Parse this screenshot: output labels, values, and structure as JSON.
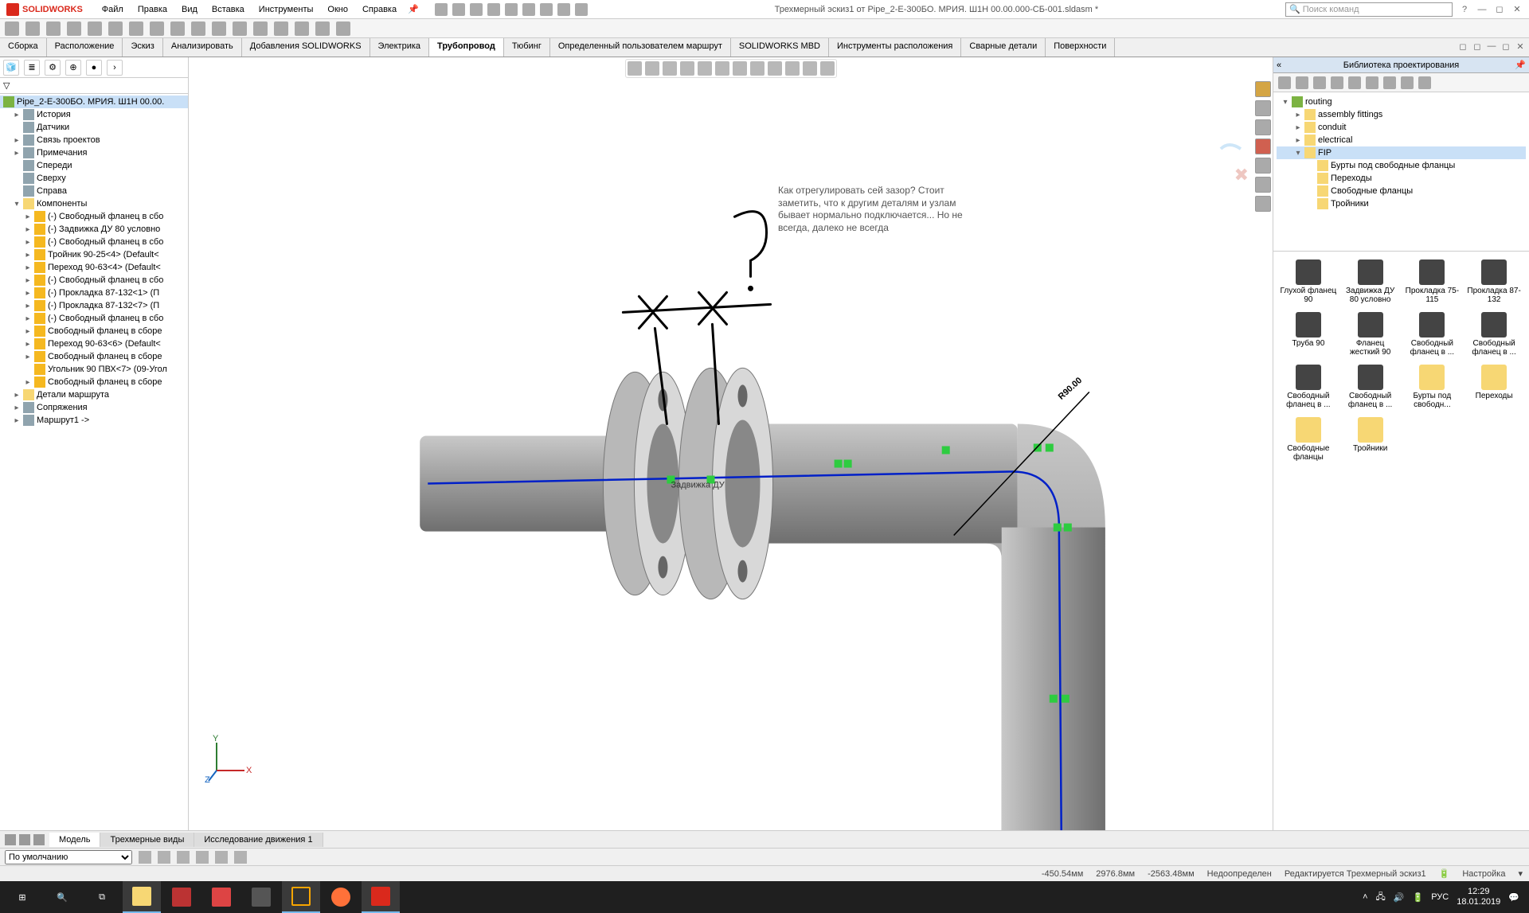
{
  "app": {
    "name": "SOLIDWORKS"
  },
  "menu": [
    "Файл",
    "Правка",
    "Вид",
    "Вставка",
    "Инструменты",
    "Окно",
    "Справка"
  ],
  "doc_title": "Трехмерный эскиз1 от Pipe_2-E-300БО. МРИЯ. Ш1Н 00.00.000-СБ-001.sldasm *",
  "search_placeholder": "Поиск команд",
  "cmd_tabs": [
    "Сборка",
    "Расположение",
    "Эскиз",
    "Анализировать",
    "Добавления SOLIDWORKS",
    "Электрика",
    "Трубопровод",
    "Тюбинг",
    "Определенный пользователем маршрут",
    "SOLIDWORKS MBD",
    "Инструменты расположения",
    "Сварные детали",
    "Поверхности"
  ],
  "cmd_tab_active": 6,
  "tree_root": "Pipe_2-E-300БО. МРИЯ. Ш1Н 00.00.",
  "tree": [
    {
      "label": "История",
      "icon": "feat",
      "indent": 1,
      "expand": "▸"
    },
    {
      "label": "Датчики",
      "icon": "feat",
      "indent": 1,
      "expand": ""
    },
    {
      "label": "Связь проектов",
      "icon": "feat",
      "indent": 1,
      "expand": "▸"
    },
    {
      "label": "Примечания",
      "icon": "feat",
      "indent": 1,
      "expand": "▸"
    },
    {
      "label": "Спереди",
      "icon": "feat",
      "indent": 1,
      "expand": ""
    },
    {
      "label": "Сверху",
      "icon": "feat",
      "indent": 1,
      "expand": ""
    },
    {
      "label": "Справа",
      "icon": "feat",
      "indent": 1,
      "expand": ""
    },
    {
      "label": "Компоненты",
      "icon": "folder",
      "indent": 1,
      "expand": "▾"
    },
    {
      "label": "(-) Свободный фланец в сбо",
      "icon": "part",
      "indent": 2,
      "expand": "▸"
    },
    {
      "label": "(-) Задвижка ДУ 80 условно",
      "icon": "part",
      "indent": 2,
      "expand": "▸"
    },
    {
      "label": "(-) Свободный фланец в сбо",
      "icon": "part",
      "indent": 2,
      "expand": "▸"
    },
    {
      "label": "Тройник 90-25<4> (Default<",
      "icon": "part",
      "indent": 2,
      "expand": "▸"
    },
    {
      "label": "Переход 90-63<4> (Default<",
      "icon": "part",
      "indent": 2,
      "expand": "▸"
    },
    {
      "label": "(-) Свободный фланец в сбо",
      "icon": "part",
      "indent": 2,
      "expand": "▸"
    },
    {
      "label": "(-) Прокладка 87-132<1> (П",
      "icon": "part",
      "indent": 2,
      "expand": "▸"
    },
    {
      "label": "(-) Прокладка 87-132<7> (П",
      "icon": "part",
      "indent": 2,
      "expand": "▸"
    },
    {
      "label": "(-) Свободный фланец в сбо",
      "icon": "part",
      "indent": 2,
      "expand": "▸"
    },
    {
      "label": "Свободный фланец в сборе",
      "icon": "part",
      "indent": 2,
      "expand": "▸"
    },
    {
      "label": "Переход 90-63<6> (Default<",
      "icon": "part",
      "indent": 2,
      "expand": "▸"
    },
    {
      "label": "Свободный фланец в сборе",
      "icon": "part",
      "indent": 2,
      "expand": "▸"
    },
    {
      "label": "Угольник 90 ПВХ<7> (09-Угол",
      "icon": "part",
      "indent": 2,
      "expand": ""
    },
    {
      "label": "Свободный фланец в сборе",
      "icon": "part",
      "indent": 2,
      "expand": "▸"
    },
    {
      "label": "Детали маршрута",
      "icon": "folder",
      "indent": 1,
      "expand": "▸"
    },
    {
      "label": "Сопряжения",
      "icon": "feat",
      "indent": 1,
      "expand": "▸"
    },
    {
      "label": "Маршрут1 ->",
      "icon": "feat",
      "indent": 1,
      "expand": "▸"
    }
  ],
  "annotation_text": "Как отрегулировать сей зазор? Стоит заметить, что к другим деталям и узлам бывает нормально подключается... Но не всегда, далеко не всегда",
  "dim_label": "R90.00",
  "right_panel_title": "Библиотека проектирования",
  "rp_tree": [
    {
      "label": "routing",
      "indent": 0,
      "expand": "▾",
      "icon": "asm"
    },
    {
      "label": "assembly fittings",
      "indent": 1,
      "expand": "▸",
      "icon": "folder"
    },
    {
      "label": "conduit",
      "indent": 1,
      "expand": "▸",
      "icon": "folder"
    },
    {
      "label": "electrical",
      "indent": 1,
      "expand": "▸",
      "icon": "folder"
    },
    {
      "label": "FIP",
      "indent": 1,
      "expand": "▾",
      "icon": "folder",
      "sel": true
    },
    {
      "label": "Бурты под свободные фланцы",
      "indent": 2,
      "expand": "",
      "icon": "folder"
    },
    {
      "label": "Переходы",
      "indent": 2,
      "expand": "",
      "icon": "folder"
    },
    {
      "label": "Свободные фланцы",
      "indent": 2,
      "expand": "",
      "icon": "folder"
    },
    {
      "label": "Тройники",
      "indent": 2,
      "expand": "",
      "icon": "folder"
    }
  ],
  "rp_items": [
    {
      "label": "Глухой фланец 90",
      "thumb": "part"
    },
    {
      "label": "Задвижка ДУ 80 условно",
      "thumb": "part"
    },
    {
      "label": "Прокладка 75-115",
      "thumb": "part"
    },
    {
      "label": "Прокладка 87-132",
      "thumb": "part"
    },
    {
      "label": "Труба 90",
      "thumb": "part"
    },
    {
      "label": "Фланец жесткий 90",
      "thumb": "part"
    },
    {
      "label": "Свободный фланец в ...",
      "thumb": "part"
    },
    {
      "label": "Свободный фланец в ...",
      "thumb": "part"
    },
    {
      "label": "Свободный фланец в ...",
      "thumb": "part"
    },
    {
      "label": "Свободный фланец в ...",
      "thumb": "part"
    },
    {
      "label": "Бурты под свободн...",
      "thumb": "folder"
    },
    {
      "label": "Переходы",
      "thumb": "folder"
    },
    {
      "label": "Свободные фланцы",
      "thumb": "folder"
    },
    {
      "label": "Тройники",
      "thumb": "folder"
    }
  ],
  "bottom_tabs": [
    "Модель",
    "Трехмерные виды",
    "Исследование движения 1"
  ],
  "bottom_tab_active": 0,
  "config_value": "По умолчанию",
  "status": {
    "coord1": "-450.54мм",
    "coord2": "2976.8мм",
    "coord3": "-2563.48мм",
    "state": "Недоопределен",
    "editing": "Редактируется Трехмерный эскиз1",
    "custom": "Настройка"
  },
  "clock": {
    "time": "12:29",
    "date": "18.01.2019"
  },
  "lang": "РУС",
  "colors": {
    "pipe": "#9a9a9a",
    "pipe_dark": "#6f6f6f",
    "route": "#0020c8",
    "accent": "#76b9ed",
    "green": "#2ecc40"
  }
}
